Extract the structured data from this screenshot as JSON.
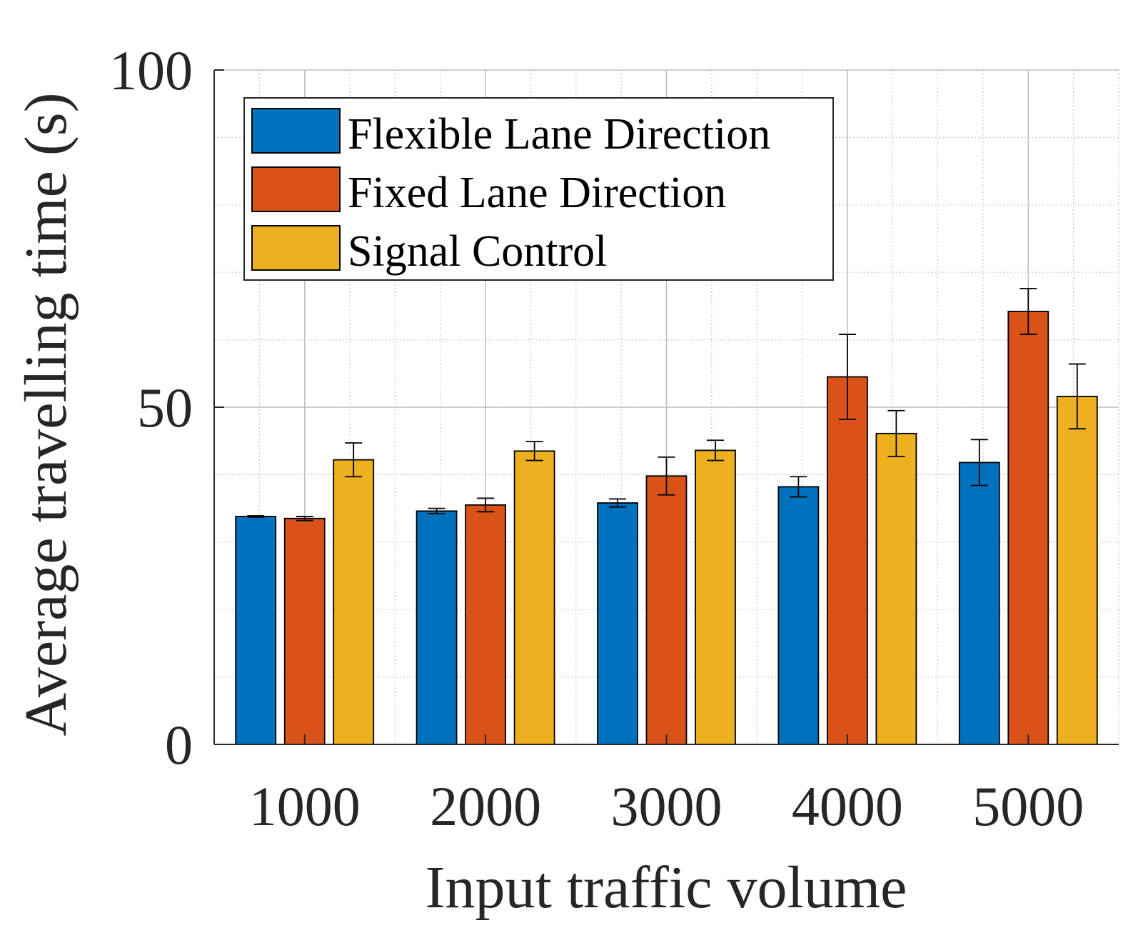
{
  "chart_data": {
    "type": "bar",
    "title": "",
    "xlabel": "Input traffic volume",
    "ylabel": "Average travelling time (s)",
    "categories": [
      "1000",
      "2000",
      "3000",
      "4000",
      "5000"
    ],
    "ylim": [
      0,
      100
    ],
    "yticks": [
      0,
      50,
      100
    ],
    "y_tick_labels": [
      "0",
      "50",
      "100"
    ],
    "grid": true,
    "minor_grid": true,
    "legend_position": "top-left",
    "series": [
      {
        "name": "Flexible Lane Direction",
        "color": "#0072BD",
        "values": [
          33.8,
          34.6,
          35.8,
          38.2,
          41.8
        ],
        "errors": [
          0.1,
          0.4,
          0.6,
          1.5,
          3.4
        ]
      },
      {
        "name": "Fixed Lane Direction",
        "color": "#D95319",
        "values": [
          33.5,
          35.5,
          39.8,
          54.5,
          64.2
        ],
        "errors": [
          0.3,
          1.0,
          2.8,
          6.3,
          3.4
        ]
      },
      {
        "name": "Signal Control",
        "color": "#EDB120",
        "values": [
          42.2,
          43.5,
          43.6,
          46.1,
          51.6
        ],
        "errors": [
          2.5,
          1.4,
          1.5,
          3.4,
          4.8
        ]
      }
    ]
  }
}
